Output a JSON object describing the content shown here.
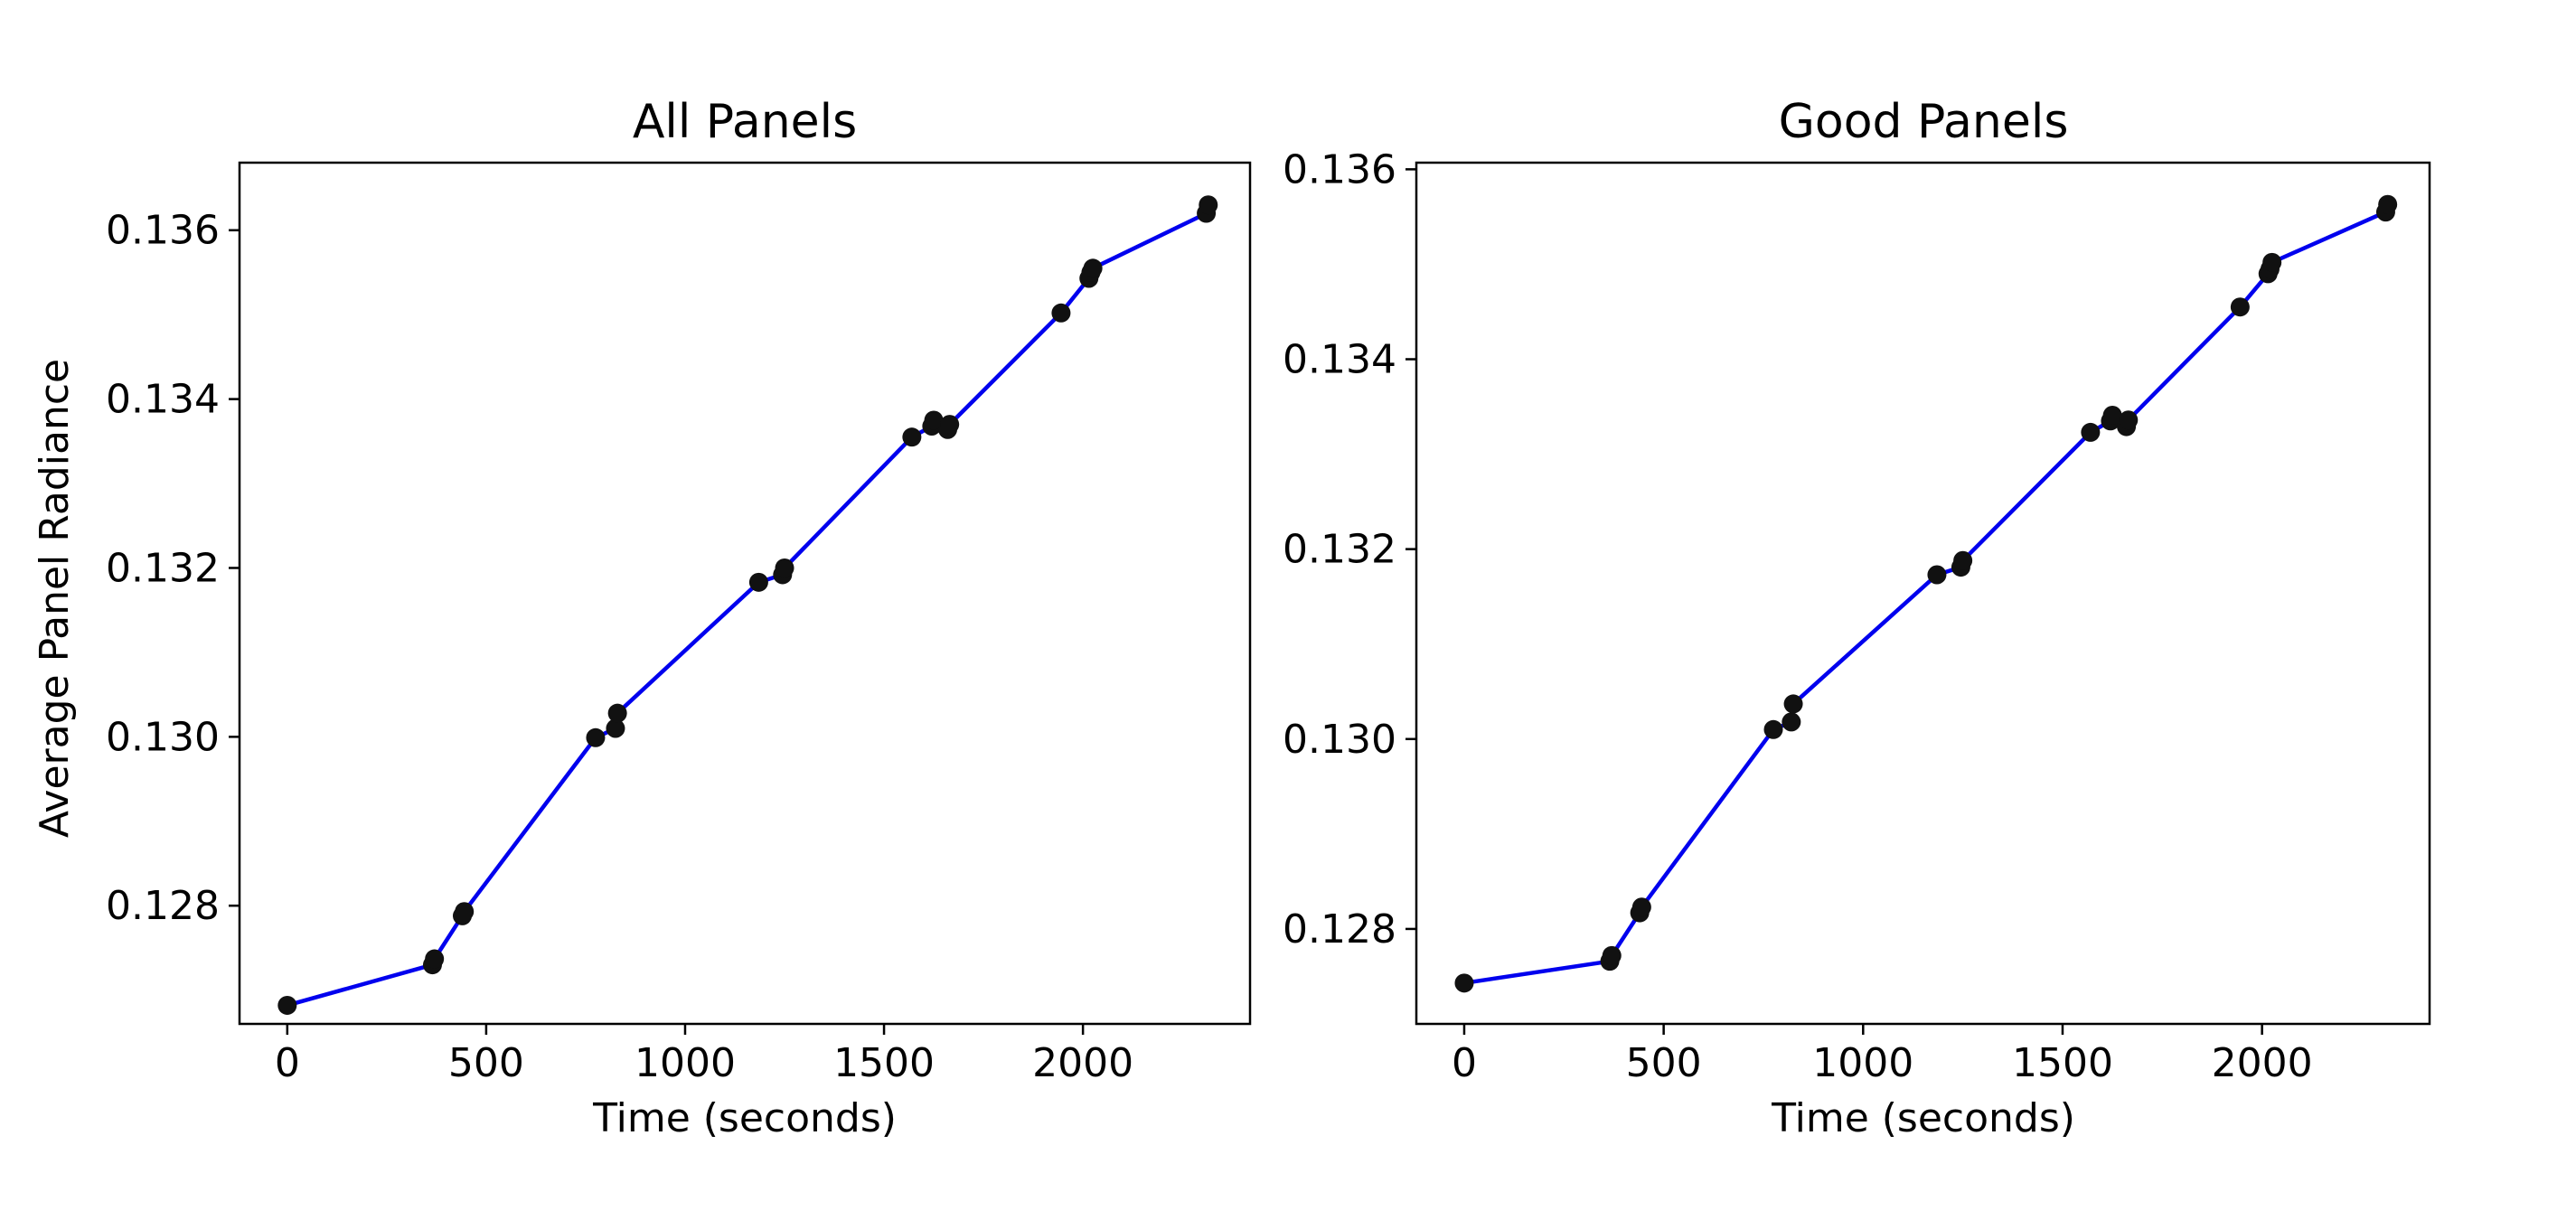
{
  "colors": {
    "line": "#0000ee",
    "marker": "#111111",
    "axes": "#000000",
    "background": "#ffffff"
  },
  "chart_data": [
    {
      "type": "line",
      "title": "All Panels",
      "xlabel": "Time (seconds)",
      "ylabel": "Average Panel Radiance",
      "xlim": [
        -120,
        2420
      ],
      "ylim": [
        0.1266,
        0.1368
      ],
      "x_ticks": [
        0,
        500,
        1000,
        1500,
        2000
      ],
      "x_tick_labels": [
        "0",
        "500",
        "1000",
        "1500",
        "2000"
      ],
      "y_ticks": [
        0.128,
        0.13,
        0.132,
        0.134,
        0.136
      ],
      "y_tick_labels": [
        "0.128",
        "0.130",
        "0.132",
        "0.134",
        "0.136"
      ],
      "grid": false,
      "markers": true,
      "series": [
        {
          "x": [
            0,
            365,
            370,
            440,
            445,
            775,
            825,
            830,
            1185,
            1245,
            1250,
            1570,
            1620,
            1625,
            1660,
            1665,
            1945,
            2015,
            2020,
            2025,
            2310,
            2315
          ],
          "y": [
            0.12682,
            0.1273,
            0.12737,
            0.12788,
            0.12793,
            0.12999,
            0.1301,
            0.13028,
            0.13183,
            0.13192,
            0.132,
            0.13355,
            0.13368,
            0.13375,
            0.13364,
            0.1337,
            0.13502,
            0.13543,
            0.1355,
            0.13555,
            0.1362,
            0.1363
          ]
        }
      ]
    },
    {
      "type": "line",
      "title": "Good Panels",
      "xlabel": "Time (seconds)",
      "ylabel": "",
      "xlim": [
        -120,
        2420
      ],
      "ylim": [
        0.127,
        0.13607
      ],
      "x_ticks": [
        0,
        500,
        1000,
        1500,
        2000
      ],
      "x_tick_labels": [
        "0",
        "500",
        "1000",
        "1500",
        "2000"
      ],
      "y_ticks": [
        0.128,
        0.13,
        0.132,
        0.134,
        0.136
      ],
      "y_tick_labels": [
        "0.128",
        "0.130",
        "0.132",
        "0.134",
        "0.136"
      ],
      "grid": false,
      "markers": true,
      "series": [
        {
          "x": [
            0,
            365,
            370,
            440,
            445,
            775,
            820,
            825,
            1185,
            1245,
            1250,
            1570,
            1620,
            1625,
            1660,
            1665,
            1945,
            2015,
            2020,
            2025,
            2310,
            2315
          ],
          "y": [
            0.12743,
            0.12766,
            0.12772,
            0.12817,
            0.12823,
            0.1301,
            0.13018,
            0.13037,
            0.13173,
            0.13181,
            0.13188,
            0.13323,
            0.13335,
            0.13341,
            0.13329,
            0.13336,
            0.13455,
            0.1349,
            0.13495,
            0.13502,
            0.13555,
            0.13563
          ]
        }
      ]
    }
  ]
}
